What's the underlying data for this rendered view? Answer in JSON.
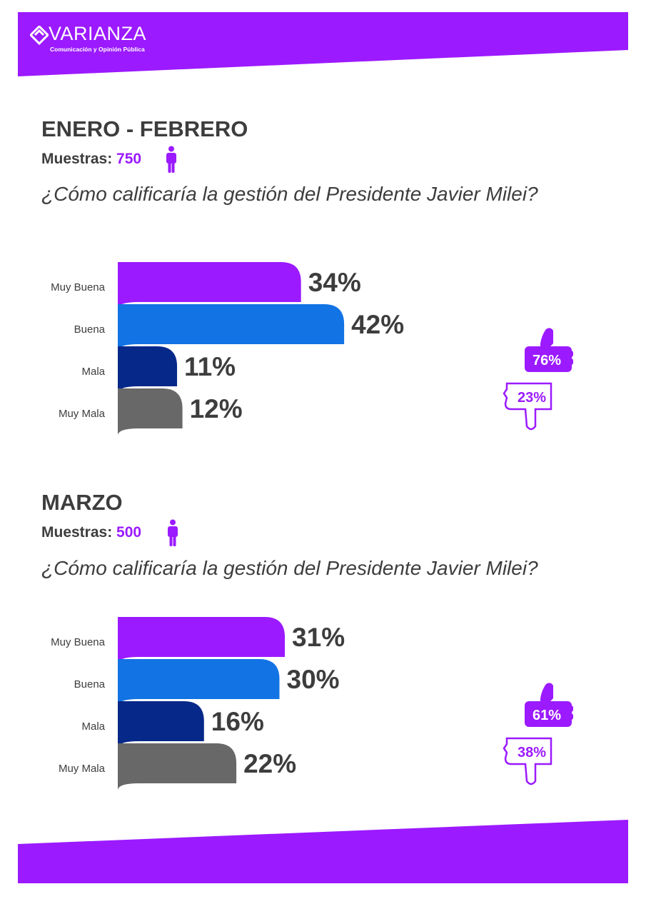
{
  "brand": {
    "name": "VARIANZA",
    "tagline": "Comunicación y Opinión Pública",
    "color": "#9b1aff"
  },
  "sections": [
    {
      "period": "ENERO - FEBRERO",
      "sample_label": "Muestras:",
      "sample_value": "750",
      "question": "¿Cómo calificaría la gestión del Presidente Javier Milei?"
    },
    {
      "period": "MARZO",
      "sample_label": "Muestras:",
      "sample_value": "500",
      "question": "¿Cómo calificaría la gestión del Presidente Javier Milei?"
    }
  ],
  "chart_data": [
    {
      "type": "bar",
      "orientation": "horizontal",
      "categories": [
        "Muy Buena",
        "Buena",
        "Mala",
        "Muy Mala"
      ],
      "values": [
        34,
        42,
        11,
        12
      ],
      "value_labels": [
        "34%",
        "42%",
        "11%",
        "12%"
      ],
      "colors": [
        "#9b1aff",
        "#1273e4",
        "#052889",
        "#686868"
      ],
      "approval": {
        "positive": 76,
        "positive_label": "76%",
        "negative": 23,
        "negative_label": "23%"
      }
    },
    {
      "type": "bar",
      "orientation": "horizontal",
      "categories": [
        "Muy Buena",
        "Buena",
        "Mala",
        "Muy Mala"
      ],
      "values": [
        31,
        30,
        16,
        22
      ],
      "value_labels": [
        "31%",
        "30%",
        "16%",
        "22%"
      ],
      "colors": [
        "#9b1aff",
        "#1273e4",
        "#052889",
        "#686868"
      ],
      "approval": {
        "positive": 61,
        "positive_label": "61%",
        "negative": 38,
        "negative_label": "38%"
      }
    }
  ]
}
